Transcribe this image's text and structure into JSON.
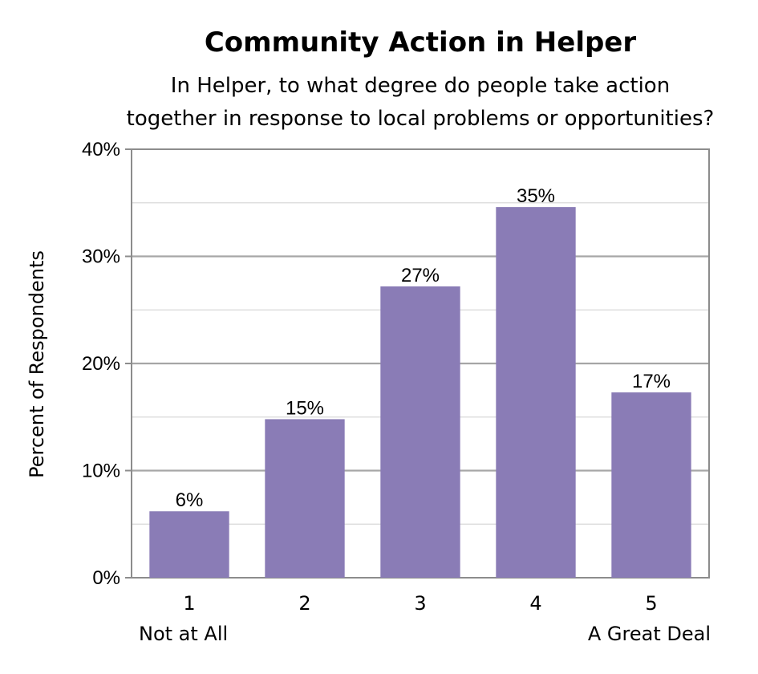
{
  "chart_data": {
    "type": "bar",
    "title": "Community Action in Helper",
    "subtitle_lines": [
      "In Helper, to what degree do people take action",
      "together in response to local problems or opportunities?"
    ],
    "ylabel": "Percent of Respondents",
    "xlabel": "",
    "categories": [
      "1",
      "2",
      "3",
      "4",
      "5"
    ],
    "category_sublabels": [
      "Not at All",
      "",
      "",
      "",
      "A Great Deal"
    ],
    "values": [
      6.2,
      14.8,
      27.2,
      34.6,
      17.3
    ],
    "data_labels": [
      "6%",
      "15%",
      "27%",
      "35%",
      "17%"
    ],
    "ylim": [
      0,
      40
    ],
    "yticks": [
      0,
      10,
      20,
      30,
      40
    ],
    "ytick_labels": [
      "0%",
      "10%",
      "20%",
      "30%",
      "40%"
    ],
    "grid": true,
    "minor_gridlines": [
      5,
      15,
      25,
      35
    ],
    "bar_color": "#8a7cb6",
    "grid_color": "#a6a6a6",
    "minor_grid_color": "#d9d9d9",
    "frame_color": "#8c8c8c"
  }
}
